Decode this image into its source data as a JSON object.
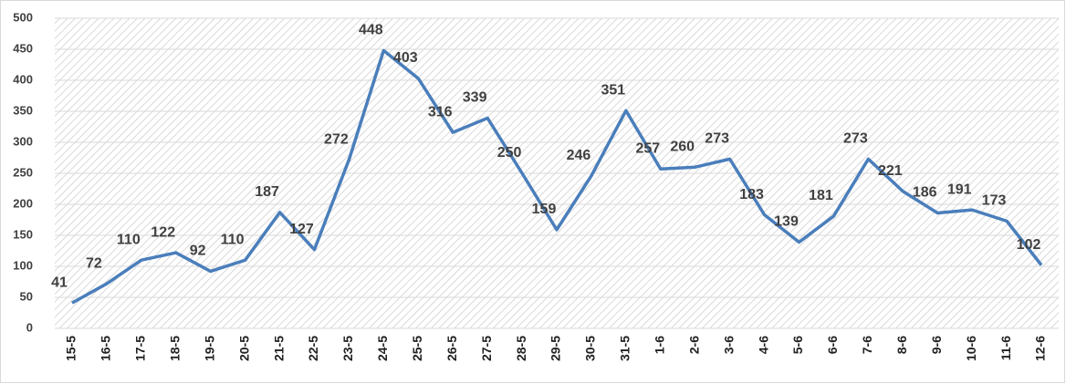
{
  "chart_data": {
    "type": "line",
    "categories": [
      "15-5",
      "16-5",
      "17-5",
      "18-5",
      "19-5",
      "20-5",
      "21-5",
      "22-5",
      "23-5",
      "24-5",
      "25-5",
      "26-5",
      "27-5",
      "28-5",
      "29-5",
      "30-5",
      "31-5",
      "1-6",
      "2-6",
      "3-6",
      "4-6",
      "5-6",
      "6-6",
      "7-6",
      "8-6",
      "9-6",
      "10-6",
      "11-6",
      "12-6"
    ],
    "values": [
      41,
      72,
      110,
      122,
      92,
      110,
      187,
      127,
      272,
      448,
      403,
      316,
      339,
      250,
      159,
      246,
      351,
      257,
      260,
      273,
      183,
      139,
      181,
      273,
      221,
      186,
      191,
      173,
      102
    ],
    "color": "#4a7ebb",
    "ylim": [
      0,
      500
    ],
    "yticks": [
      0,
      50,
      100,
      150,
      200,
      250,
      300,
      350,
      400,
      450,
      500
    ],
    "grid": true
  }
}
